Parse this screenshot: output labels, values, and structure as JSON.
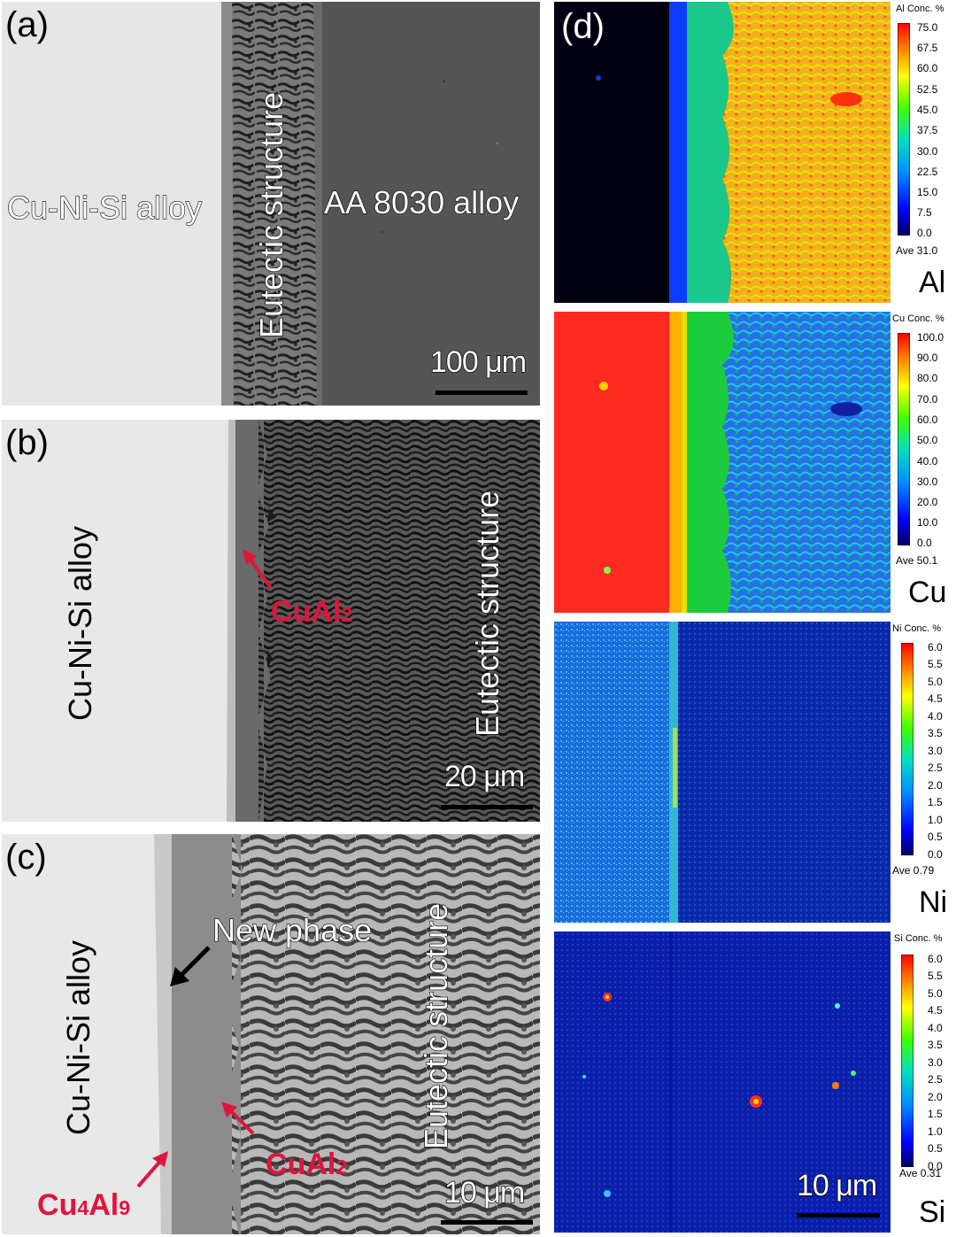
{
  "panels": {
    "a": {
      "label": "(a)",
      "left_region": "Cu-Ni-Si alloy",
      "middle_region": "Eutectic structure",
      "right_region": "AA 8030 alloy",
      "scale": "100 μm"
    },
    "b": {
      "label": "(b)",
      "left_region": "Cu-Ni-Si alloy",
      "right_region": "Eutectic structure",
      "phase": "CuAl2",
      "scale": "20 μm"
    },
    "c": {
      "label": "(c)",
      "left_region": "Cu-Ni-Si alloy",
      "right_region": "Eutectic structure",
      "new_phase": "New phase",
      "phase1": "CuAl2",
      "phase2": "Cu4Al9",
      "scale": "10 μm"
    },
    "d": {
      "label": "(d)",
      "scale": "10 μm",
      "maps": [
        {
          "element": "Al",
          "title": "Al Conc. %",
          "ticks": [
            "75.0",
            "67.5",
            "60.0",
            "52.5",
            "45.0",
            "37.5",
            "30.0",
            "22.5",
            "15.0",
            "7.5",
            "0.0"
          ],
          "ave": "Ave 31.0"
        },
        {
          "element": "Cu",
          "title": "Cu Conc. %",
          "ticks": [
            "100.0",
            "90.0",
            "80.0",
            "70.0",
            "60.0",
            "50.0",
            "40.0",
            "30.0",
            "20.0",
            "10.0",
            "0.0"
          ],
          "ave": "Ave 50.1"
        },
        {
          "element": "Ni",
          "title": "Ni Conc. %",
          "ticks": [
            "6.0",
            "5.5",
            "5.0",
            "4.5",
            "4.0",
            "3.5",
            "3.0",
            "2.5",
            "2.0",
            "1.5",
            "1.0",
            "0.5",
            "0.0"
          ],
          "ave": "Ave 0.79"
        },
        {
          "element": "Si",
          "title": "Si Conc. %",
          "ticks": [
            "6.0",
            "5.5",
            "5.0",
            "4.5",
            "4.0",
            "3.5",
            "3.0",
            "2.5",
            "2.0",
            "1.5",
            "1.0",
            "0.5",
            "0.0"
          ],
          "ave": "Ave 0.31"
        }
      ]
    }
  },
  "colors": {
    "label_red": "#e0143c",
    "colormap": [
      "#000080",
      "#0000ff",
      "#00a0ff",
      "#00ffff",
      "#00ff00",
      "#ffff00",
      "#ff8000",
      "#ff0000"
    ]
  }
}
